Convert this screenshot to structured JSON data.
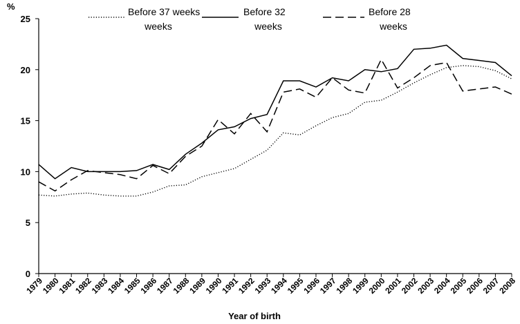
{
  "chart_data": {
    "type": "line",
    "ylabel": "%",
    "xlabel": "Year of birth",
    "ylim": [
      0,
      25
    ],
    "yticks": [
      0,
      5,
      10,
      15,
      20,
      25
    ],
    "grid": false,
    "legend_position": "top",
    "x": [
      "1979",
      "1980",
      "1981",
      "1982",
      "1983",
      "1984",
      "1985",
      "1986",
      "1987",
      "1988",
      "1989",
      "1990",
      "1991",
      "1992",
      "1993",
      "1994",
      "1995",
      "1996",
      "1997",
      "1998",
      "1999",
      "2000",
      "2001",
      "2002",
      "2003",
      "2004",
      "2005",
      "2006",
      "2007",
      "2008"
    ],
    "series": [
      {
        "name": "Before 37 weeks",
        "style": "dotted",
        "values": [
          7.7,
          7.6,
          7.8,
          7.9,
          7.7,
          7.6,
          7.6,
          8.0,
          8.6,
          8.7,
          9.5,
          9.9,
          10.3,
          11.2,
          12.1,
          13.8,
          13.6,
          14.5,
          15.3,
          15.7,
          16.8,
          17.0,
          17.8,
          18.7,
          19.5,
          20.2,
          20.4,
          20.3,
          19.9,
          19.1
        ]
      },
      {
        "name": "Before 32\nweeks",
        "legend_lines": [
          "Before 32",
          "weeks"
        ],
        "style": "solid",
        "values": [
          10.7,
          9.3,
          10.4,
          10.0,
          10.0,
          10.0,
          10.1,
          10.7,
          10.2,
          11.7,
          12.8,
          14.1,
          14.4,
          15.2,
          15.6,
          18.9,
          18.9,
          18.3,
          19.2,
          18.9,
          20.0,
          19.8,
          20.1,
          22.0,
          22.1,
          22.4,
          21.1,
          20.9,
          20.7,
          19.4
        ]
      },
      {
        "name": "Before 28\nweeks",
        "legend_lines": [
          "Before 28",
          "weeks"
        ],
        "style": "dashed",
        "values": [
          9.0,
          8.1,
          9.2,
          10.1,
          9.9,
          9.7,
          9.3,
          10.6,
          9.8,
          11.5,
          12.5,
          15.1,
          13.7,
          15.7,
          13.9,
          17.8,
          18.1,
          17.3,
          19.2,
          18.0,
          17.7,
          21.0,
          18.2,
          19.2,
          20.4,
          20.7,
          17.9,
          18.1,
          18.3,
          17.6
        ]
      }
    ]
  }
}
